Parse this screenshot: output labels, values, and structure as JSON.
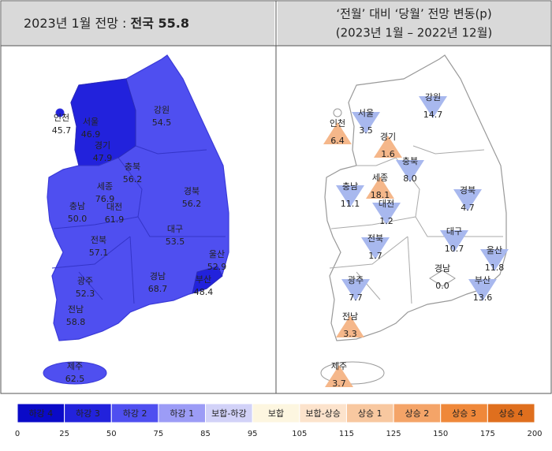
{
  "left": {
    "title": "2023년 1월 전망 : ",
    "title_bold": "전국 55.8",
    "regions": [
      {
        "name": "인천",
        "value": "45.7"
      },
      {
        "name": "서울",
        "value": "46.9"
      },
      {
        "name": "경기",
        "value": "47.9"
      },
      {
        "name": "강원",
        "value": "54.5"
      },
      {
        "name": "충북",
        "value": "56.2"
      },
      {
        "name": "세종",
        "value": "76.9"
      },
      {
        "name": "충남",
        "value": "50.0"
      },
      {
        "name": "대전",
        "value": "61.9"
      },
      {
        "name": "경북",
        "value": "56.2"
      },
      {
        "name": "대구",
        "value": "53.5"
      },
      {
        "name": "전북",
        "value": "57.1"
      },
      {
        "name": "울산",
        "value": "52.9"
      },
      {
        "name": "부산",
        "value": "48.4"
      },
      {
        "name": "광주",
        "value": "52.3"
      },
      {
        "name": "경남",
        "value": "68.7"
      },
      {
        "name": "전남",
        "value": "58.8"
      },
      {
        "name": "제주",
        "value": "62.5"
      }
    ]
  },
  "right": {
    "title_lines": [
      "‘전월’ 대비 ‘당월’ 전망 변동(p)",
      "(2023년 1월 – 2022년 12월)"
    ],
    "regions": [
      {
        "name": "인천",
        "value": "6.4",
        "direction": "up"
      },
      {
        "name": "서울",
        "value": "3.5",
        "direction": "down"
      },
      {
        "name": "경기",
        "value": "1.6",
        "direction": "up"
      },
      {
        "name": "강원",
        "value": "14.7",
        "direction": "down"
      },
      {
        "name": "충북",
        "value": "8.0",
        "direction": "down"
      },
      {
        "name": "세종",
        "value": "18.1",
        "direction": "up"
      },
      {
        "name": "충남",
        "value": "11.1",
        "direction": "down"
      },
      {
        "name": "대전",
        "value": "1.2",
        "direction": "down"
      },
      {
        "name": "경북",
        "value": "4.7",
        "direction": "down"
      },
      {
        "name": "전북",
        "value": "1.7",
        "direction": "down"
      },
      {
        "name": "대구",
        "value": "10.7",
        "direction": "down"
      },
      {
        "name": "울산",
        "value": "11.8",
        "direction": "down"
      },
      {
        "name": "경남",
        "value": "0.0",
        "direction": "flat"
      },
      {
        "name": "부산",
        "value": "13.6",
        "direction": "down"
      },
      {
        "name": "광주",
        "value": "7.7",
        "direction": "down"
      },
      {
        "name": "전남",
        "value": "3.3",
        "direction": "up"
      },
      {
        "name": "제주",
        "value": "3.7",
        "direction": "up"
      }
    ]
  },
  "legend": {
    "items": [
      {
        "label": "하강 4",
        "color": "#0a0ac8"
      },
      {
        "label": "하강 3",
        "color": "#2222dc"
      },
      {
        "label": "하강 2",
        "color": "#4f4ff0"
      },
      {
        "label": "하강 1",
        "color": "#9c9cf6"
      },
      {
        "label": "보합-하강",
        "color": "#d2d2f8"
      },
      {
        "label": "보합",
        "color": "#fdf6e0"
      },
      {
        "label": "보합-상승",
        "color": "#fce3cc"
      },
      {
        "label": "상승 1",
        "color": "#f8c8a0"
      },
      {
        "label": "상승 2",
        "color": "#f4a468"
      },
      {
        "label": "상승 3",
        "color": "#ef883a"
      },
      {
        "label": "상승 4",
        "color": "#df6f1e"
      }
    ],
    "ticks": [
      0,
      25,
      50,
      75,
      85,
      95,
      105,
      115,
      125,
      150,
      175,
      200
    ]
  }
}
